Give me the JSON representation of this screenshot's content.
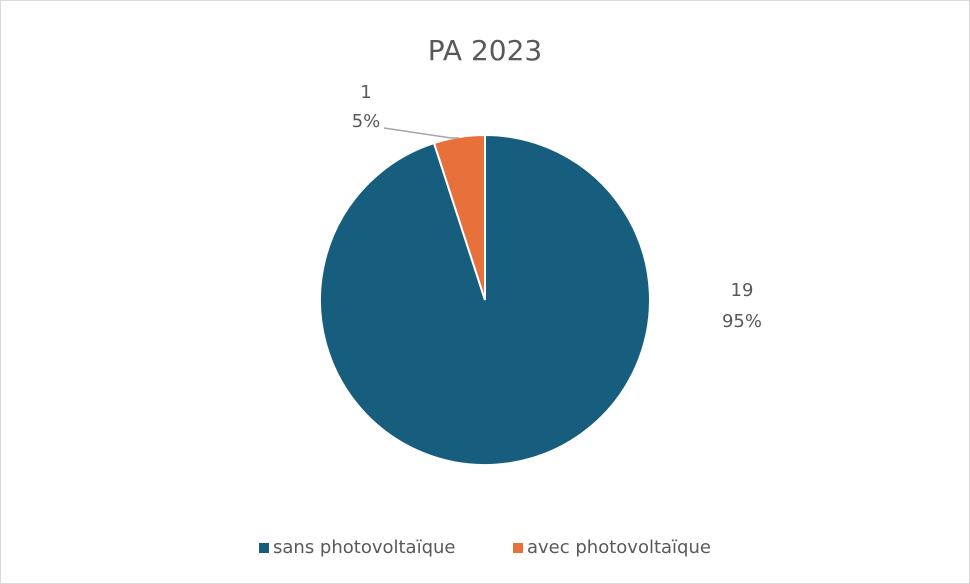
{
  "chart_data": {
    "type": "pie",
    "title": "PA 2023",
    "categories": [
      "sans photovoltaïque",
      "avec photovoltaïque"
    ],
    "values": [
      19,
      1
    ],
    "percentages": [
      {
        "value": 95,
        "label": "95%"
      },
      {
        "value": 5,
        "label": "5%"
      }
    ],
    "colors": [
      "#175e7e",
      "#e8703a"
    ],
    "legend": "bottom"
  }
}
